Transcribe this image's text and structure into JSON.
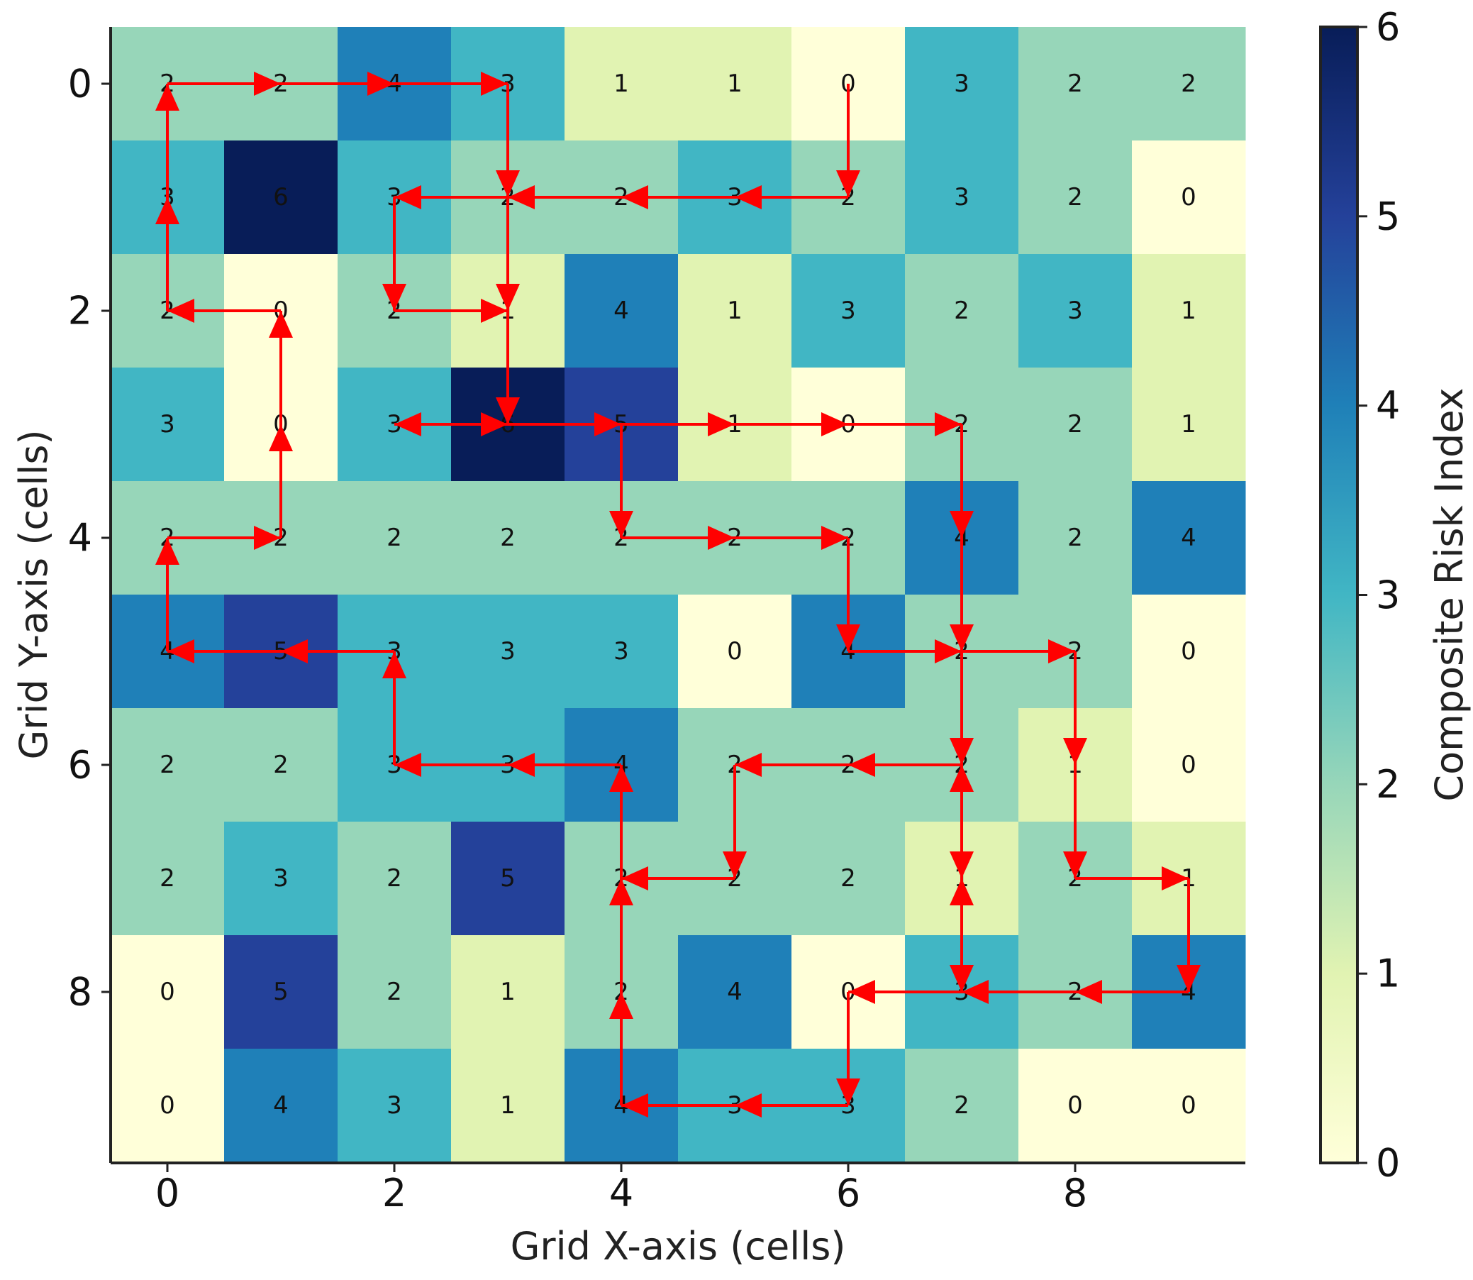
{
  "chart_data": {
    "type": "heatmap",
    "title": "",
    "xlabel": "Grid X-axis (cells)",
    "ylabel": "Grid Y-axis (cells)",
    "colorbar_label": "Composite Risk Index",
    "colormap": "YlGnBu",
    "vmin": 0,
    "vmax": 6,
    "x_ticks": [
      0,
      2,
      4,
      6,
      8
    ],
    "y_ticks": [
      0,
      2,
      4,
      6,
      8
    ],
    "colorbar_ticks": [
      0,
      1,
      2,
      3,
      4,
      5,
      6
    ],
    "grid": [
      [
        2,
        2,
        4,
        3,
        1,
        1,
        0,
        3,
        2,
        2
      ],
      [
        3,
        6,
        3,
        2,
        2,
        3,
        2,
        3,
        2,
        0
      ],
      [
        2,
        0,
        2,
        1,
        4,
        1,
        3,
        2,
        3,
        1
      ],
      [
        3,
        0,
        3,
        6,
        5,
        1,
        0,
        2,
        2,
        1
      ],
      [
        2,
        2,
        2,
        2,
        2,
        2,
        2,
        4,
        2,
        4
      ],
      [
        4,
        5,
        3,
        3,
        3,
        0,
        4,
        2,
        2,
        0
      ],
      [
        2,
        2,
        3,
        3,
        4,
        2,
        2,
        2,
        1,
        0
      ],
      [
        2,
        3,
        2,
        5,
        2,
        2,
        2,
        1,
        2,
        1
      ],
      [
        0,
        5,
        2,
        1,
        2,
        4,
        0,
        3,
        2,
        4
      ],
      [
        0,
        4,
        3,
        1,
        4,
        3,
        3,
        2,
        0,
        0
      ]
    ],
    "path_arrows": [
      [
        [
          0,
          0
        ],
        [
          1,
          0
        ]
      ],
      [
        [
          1,
          0
        ],
        [
          2,
          0
        ]
      ],
      [
        [
          2,
          0
        ],
        [
          3,
          0
        ]
      ],
      [
        [
          3,
          0
        ],
        [
          3,
          1
        ]
      ],
      [
        [
          3,
          1
        ],
        [
          3,
          2
        ]
      ],
      [
        [
          3,
          2
        ],
        [
          3,
          3
        ]
      ],
      [
        [
          6,
          0
        ],
        [
          6,
          1
        ]
      ],
      [
        [
          6,
          1
        ],
        [
          5,
          1
        ]
      ],
      [
        [
          5,
          1
        ],
        [
          4,
          1
        ]
      ],
      [
        [
          4,
          1
        ],
        [
          3,
          1
        ]
      ],
      [
        [
          3,
          1
        ],
        [
          2,
          1
        ]
      ],
      [
        [
          2,
          1
        ],
        [
          2,
          2
        ]
      ],
      [
        [
          2,
          2
        ],
        [
          3,
          2
        ]
      ],
      [
        [
          1,
          2
        ],
        [
          0,
          2
        ]
      ],
      [
        [
          0,
          2
        ],
        [
          0,
          1
        ]
      ],
      [
        [
          0,
          1
        ],
        [
          0,
          0
        ]
      ],
      [
        [
          1,
          4
        ],
        [
          1,
          3
        ]
      ],
      [
        [
          1,
          3
        ],
        [
          1,
          2
        ]
      ],
      [
        [
          3,
          3
        ],
        [
          2,
          3
        ]
      ],
      [
        [
          2,
          3
        ],
        [
          3,
          3
        ]
      ],
      [
        [
          3,
          3
        ],
        [
          4,
          3
        ]
      ],
      [
        [
          4,
          3
        ],
        [
          5,
          3
        ]
      ],
      [
        [
          5,
          3
        ],
        [
          6,
          3
        ]
      ],
      [
        [
          6,
          3
        ],
        [
          7,
          3
        ]
      ],
      [
        [
          4,
          3
        ],
        [
          4,
          4
        ]
      ],
      [
        [
          4,
          4
        ],
        [
          5,
          4
        ]
      ],
      [
        [
          5,
          4
        ],
        [
          6,
          4
        ]
      ],
      [
        [
          6,
          4
        ],
        [
          6,
          5
        ]
      ],
      [
        [
          6,
          5
        ],
        [
          7,
          5
        ]
      ],
      [
        [
          7,
          3
        ],
        [
          7,
          4
        ]
      ],
      [
        [
          7,
          4
        ],
        [
          7,
          5
        ]
      ],
      [
        [
          7,
          5
        ],
        [
          8,
          5
        ]
      ],
      [
        [
          7,
          5
        ],
        [
          7,
          6
        ]
      ],
      [
        [
          0,
          5
        ],
        [
          0,
          4
        ]
      ],
      [
        [
          0,
          4
        ],
        [
          1,
          4
        ]
      ],
      [
        [
          2,
          5
        ],
        [
          1,
          5
        ]
      ],
      [
        [
          1,
          5
        ],
        [
          0,
          5
        ]
      ],
      [
        [
          2,
          6
        ],
        [
          2,
          5
        ]
      ],
      [
        [
          3,
          6
        ],
        [
          2,
          6
        ]
      ],
      [
        [
          4,
          6
        ],
        [
          3,
          6
        ]
      ],
      [
        [
          8,
          5
        ],
        [
          8,
          6
        ]
      ],
      [
        [
          8,
          6
        ],
        [
          8,
          7
        ]
      ],
      [
        [
          8,
          7
        ],
        [
          9,
          7
        ]
      ],
      [
        [
          9,
          7
        ],
        [
          9,
          8
        ]
      ],
      [
        [
          9,
          8
        ],
        [
          8,
          8
        ]
      ],
      [
        [
          8,
          8
        ],
        [
          7,
          8
        ]
      ],
      [
        [
          7,
          8
        ],
        [
          6,
          8
        ]
      ],
      [
        [
          7,
          6
        ],
        [
          6,
          6
        ]
      ],
      [
        [
          6,
          6
        ],
        [
          5,
          6
        ]
      ],
      [
        [
          5,
          6
        ],
        [
          5,
          7
        ]
      ],
      [
        [
          5,
          7
        ],
        [
          4,
          7
        ]
      ],
      [
        [
          7,
          6
        ],
        [
          7,
          7
        ]
      ],
      [
        [
          7,
          7
        ],
        [
          7,
          6
        ]
      ],
      [
        [
          7,
          7
        ],
        [
          7,
          8
        ]
      ],
      [
        [
          7,
          8
        ],
        [
          7,
          7
        ]
      ],
      [
        [
          6,
          8
        ],
        [
          6,
          9
        ]
      ],
      [
        [
          6,
          9
        ],
        [
          5,
          9
        ]
      ],
      [
        [
          5,
          9
        ],
        [
          4,
          9
        ]
      ],
      [
        [
          4,
          9
        ],
        [
          4,
          8
        ]
      ],
      [
        [
          4,
          8
        ],
        [
          4,
          7
        ]
      ],
      [
        [
          4,
          7
        ],
        [
          4,
          6
        ]
      ]
    ],
    "arrow_color": "#ff0000"
  }
}
